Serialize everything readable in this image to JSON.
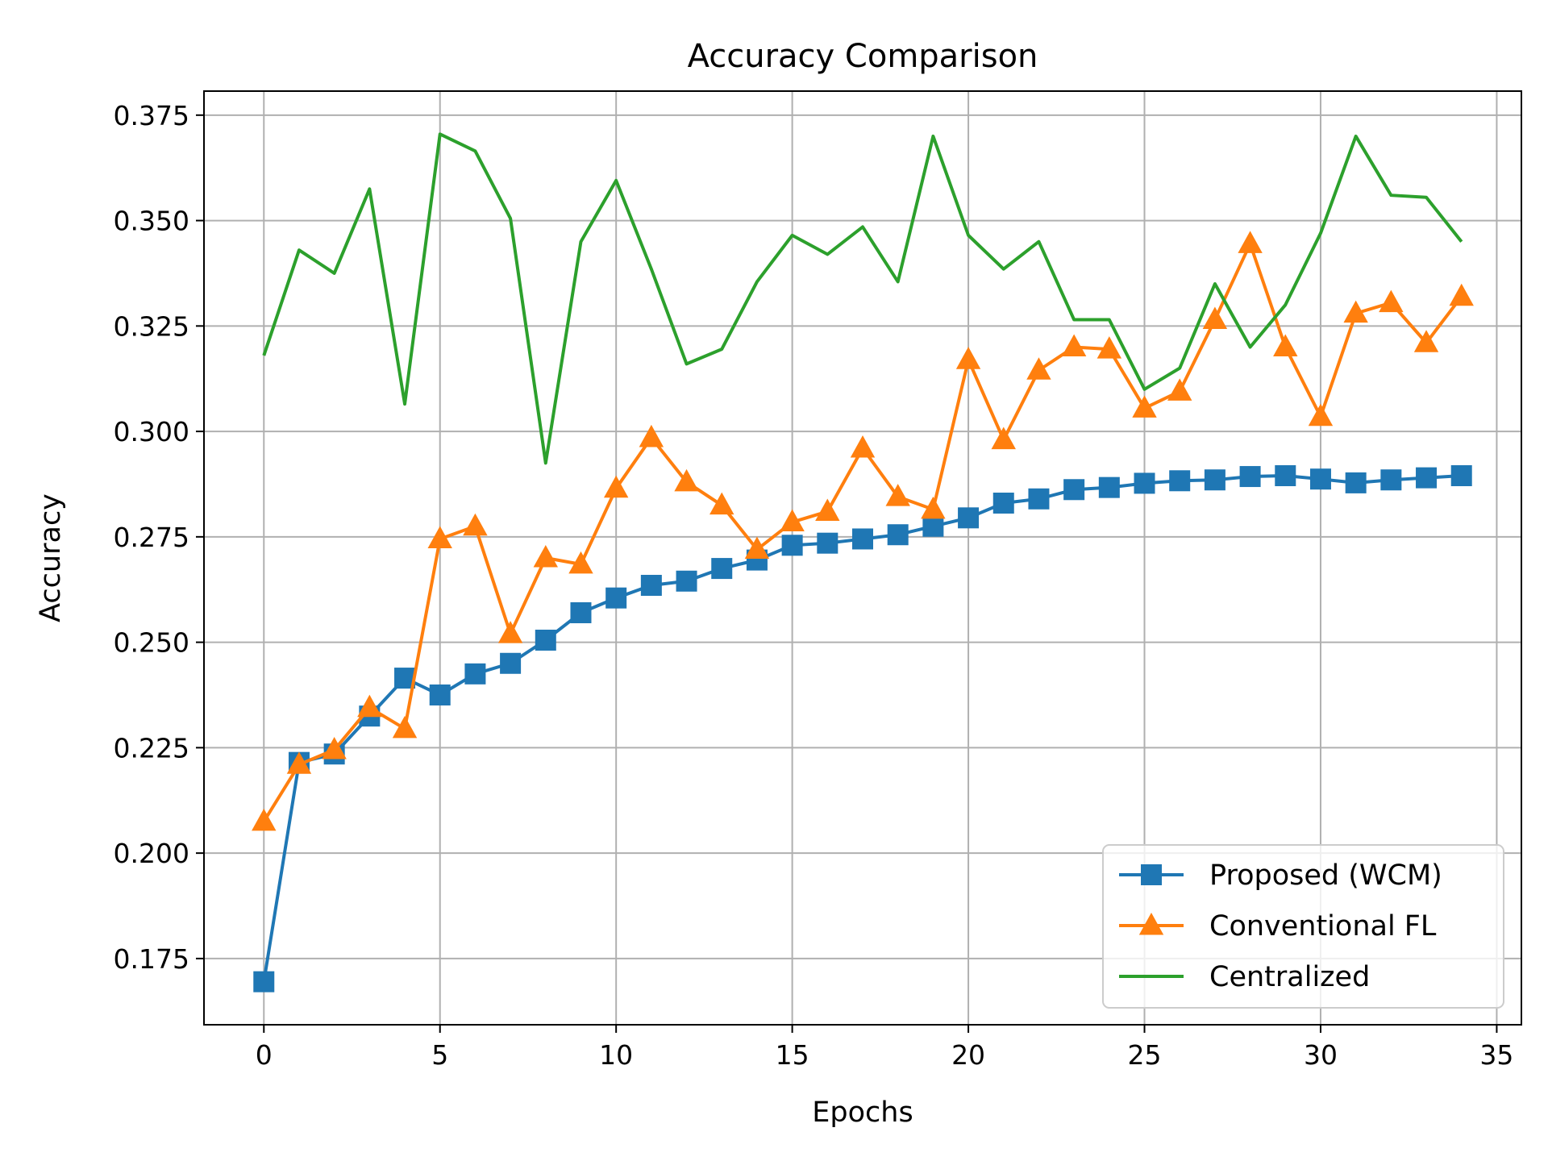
{
  "chart_data": {
    "type": "line",
    "title": "Accuracy Comparison",
    "xlabel": "Epochs",
    "ylabel": "Accuracy",
    "xlim": [
      -1.7,
      35.7
    ],
    "ylim": [
      0.1593,
      0.3807
    ],
    "grid": true,
    "legend_position": "lower-right",
    "x_ticks": [
      0,
      5,
      10,
      15,
      20,
      25,
      30,
      35
    ],
    "x_tick_labels": [
      "0",
      "5",
      "10",
      "15",
      "20",
      "25",
      "30",
      "35"
    ],
    "y_ticks": [
      0.175,
      0.2,
      0.225,
      0.25,
      0.275,
      0.3,
      0.325,
      0.35,
      0.375
    ],
    "y_tick_labels": [
      "0.175",
      "0.200",
      "0.225",
      "0.250",
      "0.275",
      "0.300",
      "0.325",
      "0.350",
      "0.375"
    ],
    "x": [
      0,
      1,
      2,
      3,
      4,
      5,
      6,
      7,
      8,
      9,
      10,
      11,
      12,
      13,
      14,
      15,
      16,
      17,
      18,
      19,
      20,
      21,
      22,
      23,
      24,
      25,
      26,
      27,
      28,
      29,
      30,
      31,
      32,
      33,
      34
    ],
    "series": [
      {
        "name": "Proposed (WCM)",
        "color": "#1f77b4",
        "marker": "square",
        "line": true,
        "values": [
          0.1695,
          0.2215,
          0.2235,
          0.2325,
          0.2415,
          0.2375,
          0.2425,
          0.245,
          0.2505,
          0.257,
          0.2605,
          0.2635,
          0.2645,
          0.2675,
          0.2695,
          0.273,
          0.2735,
          0.2745,
          0.2755,
          0.2775,
          0.2795,
          0.283,
          0.284,
          0.2862,
          0.2867,
          0.2877,
          0.2883,
          0.2885,
          0.2893,
          0.2895,
          0.2887,
          0.2878,
          0.2885,
          0.289,
          0.2895
        ]
      },
      {
        "name": "Conventional FL",
        "color": "#ff7f0e",
        "marker": "triangle",
        "line": true,
        "values": [
          0.2075,
          0.221,
          0.2245,
          0.2345,
          0.2295,
          0.2745,
          0.2775,
          0.252,
          0.27,
          0.2685,
          0.2865,
          0.2985,
          0.288,
          0.2825,
          0.272,
          0.2785,
          0.281,
          0.296,
          0.2845,
          0.2815,
          0.317,
          0.298,
          0.3145,
          0.32,
          0.3195,
          0.3055,
          0.3095,
          0.3265,
          0.3445,
          0.32,
          0.3035,
          0.328,
          0.3305,
          0.321,
          0.332
        ]
      },
      {
        "name": "Centralized",
        "color": "#2ca02c",
        "marker": "none",
        "line": true,
        "values": [
          0.318,
          0.343,
          0.3375,
          0.3575,
          0.3065,
          0.3705,
          0.3665,
          0.3505,
          0.2925,
          0.345,
          0.3595,
          0.3385,
          0.316,
          0.3195,
          0.3355,
          0.3465,
          0.342,
          0.3485,
          0.3355,
          0.37,
          0.3465,
          0.3385,
          0.345,
          0.3265,
          0.3265,
          0.31,
          0.315,
          0.335,
          0.32,
          0.33,
          0.347,
          0.37,
          0.356,
          0.3555,
          0.345
        ]
      }
    ]
  }
}
